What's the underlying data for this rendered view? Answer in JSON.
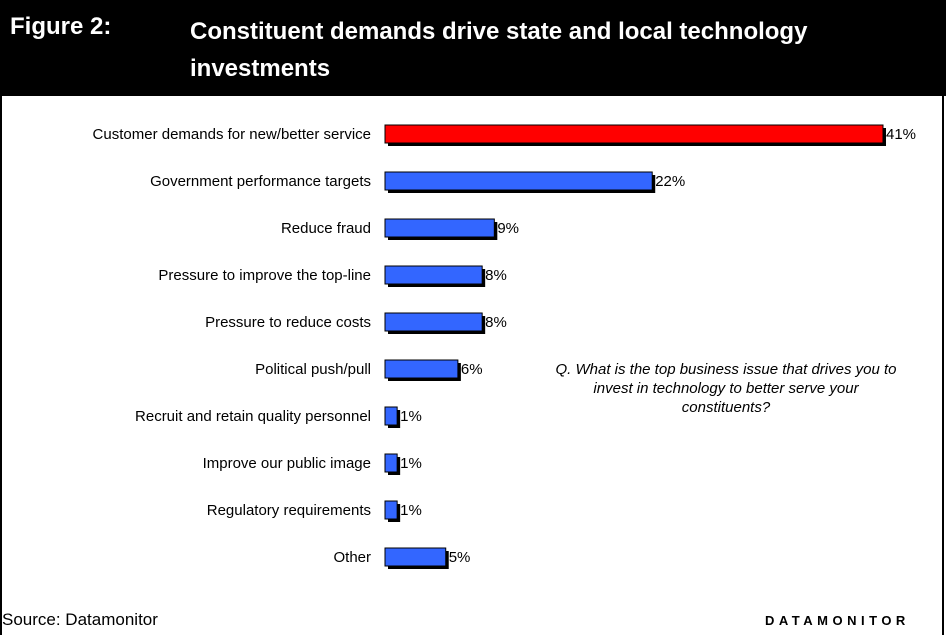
{
  "figure": {
    "label": "Figure 2:",
    "title": "Constituent demands drive state and local technology investments"
  },
  "note": "Q. What is the top business issue that drives you to invest in technology to better serve your constituents?",
  "source": "Source: Datamonitor",
  "brand": "DATAMONITOR",
  "colors": {
    "highlight": "#ff0000",
    "bar": "#3366ff",
    "header_bg": "#000000"
  },
  "chart_data": {
    "type": "bar",
    "orientation": "horizontal",
    "categories": [
      "Customer demands for new/better service",
      "Government performance targets",
      "Reduce fraud",
      "Pressure to improve the top-line",
      "Pressure to reduce costs",
      "Political push/pull",
      "Recruit and retain quality personnel",
      "Improve our public image",
      "Regulatory requirements",
      "Other"
    ],
    "values": [
      41,
      22,
      9,
      8,
      8,
      6,
      1,
      1,
      1,
      5
    ],
    "value_labels": [
      "41%",
      "22%",
      "9%",
      "8%",
      "8%",
      "6%",
      "1%",
      "1%",
      "1%",
      "5%"
    ],
    "highlight_index": 0,
    "xlim": [
      0,
      41
    ],
    "grid": false
  }
}
